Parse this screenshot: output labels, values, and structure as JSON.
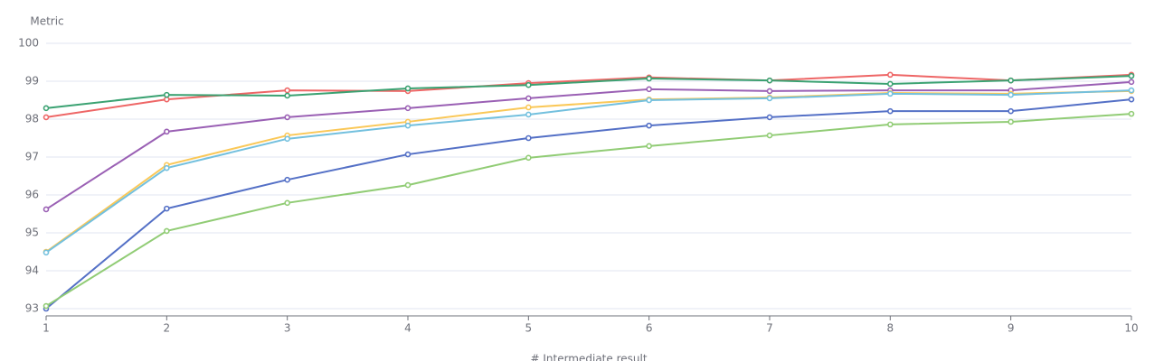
{
  "chart_data": {
    "type": "line",
    "y_label": "Metric",
    "x_label": "# Intermediate result",
    "x": [
      1,
      2,
      3,
      4,
      5,
      6,
      7,
      8,
      9,
      10
    ],
    "xlim": [
      1,
      10
    ],
    "xticks": [
      1,
      2,
      3,
      4,
      5,
      6,
      7,
      8,
      9,
      10
    ],
    "ylim": [
      93,
      100
    ],
    "yticks": [
      93,
      94,
      95,
      96,
      97,
      98,
      99,
      100
    ],
    "grid": true,
    "series": [
      {
        "color": "#ee6666",
        "values": [
          98.05,
          98.52,
          98.76,
          98.74,
          98.95,
          99.1,
          99.02,
          99.17,
          99.02,
          99.17
        ]
      },
      {
        "color": "#3ba272",
        "values": [
          98.29,
          98.64,
          98.62,
          98.81,
          98.9,
          99.07,
          99.02,
          98.93,
          99.02,
          99.14
        ]
      },
      {
        "color": "#9a60b4",
        "values": [
          95.62,
          97.67,
          98.05,
          98.29,
          98.55,
          98.79,
          98.74,
          98.76,
          98.76,
          98.98
        ]
      },
      {
        "color": "#fac858",
        "values": [
          94.5,
          96.79,
          97.57,
          97.93,
          98.31,
          98.52,
          98.57,
          98.69,
          98.67,
          98.74
        ]
      },
      {
        "color": "#73c0de",
        "values": [
          94.48,
          96.71,
          97.48,
          97.83,
          98.12,
          98.5,
          98.55,
          98.67,
          98.64,
          98.76
        ]
      },
      {
        "color": "#5470c6",
        "values": [
          93.0,
          95.64,
          96.4,
          97.07,
          97.5,
          97.83,
          98.05,
          98.21,
          98.21,
          98.52
        ]
      },
      {
        "color": "#91cc75",
        "values": [
          93.07,
          95.05,
          95.79,
          96.26,
          96.98,
          97.29,
          97.57,
          97.86,
          97.93,
          98.14
        ]
      }
    ]
  }
}
